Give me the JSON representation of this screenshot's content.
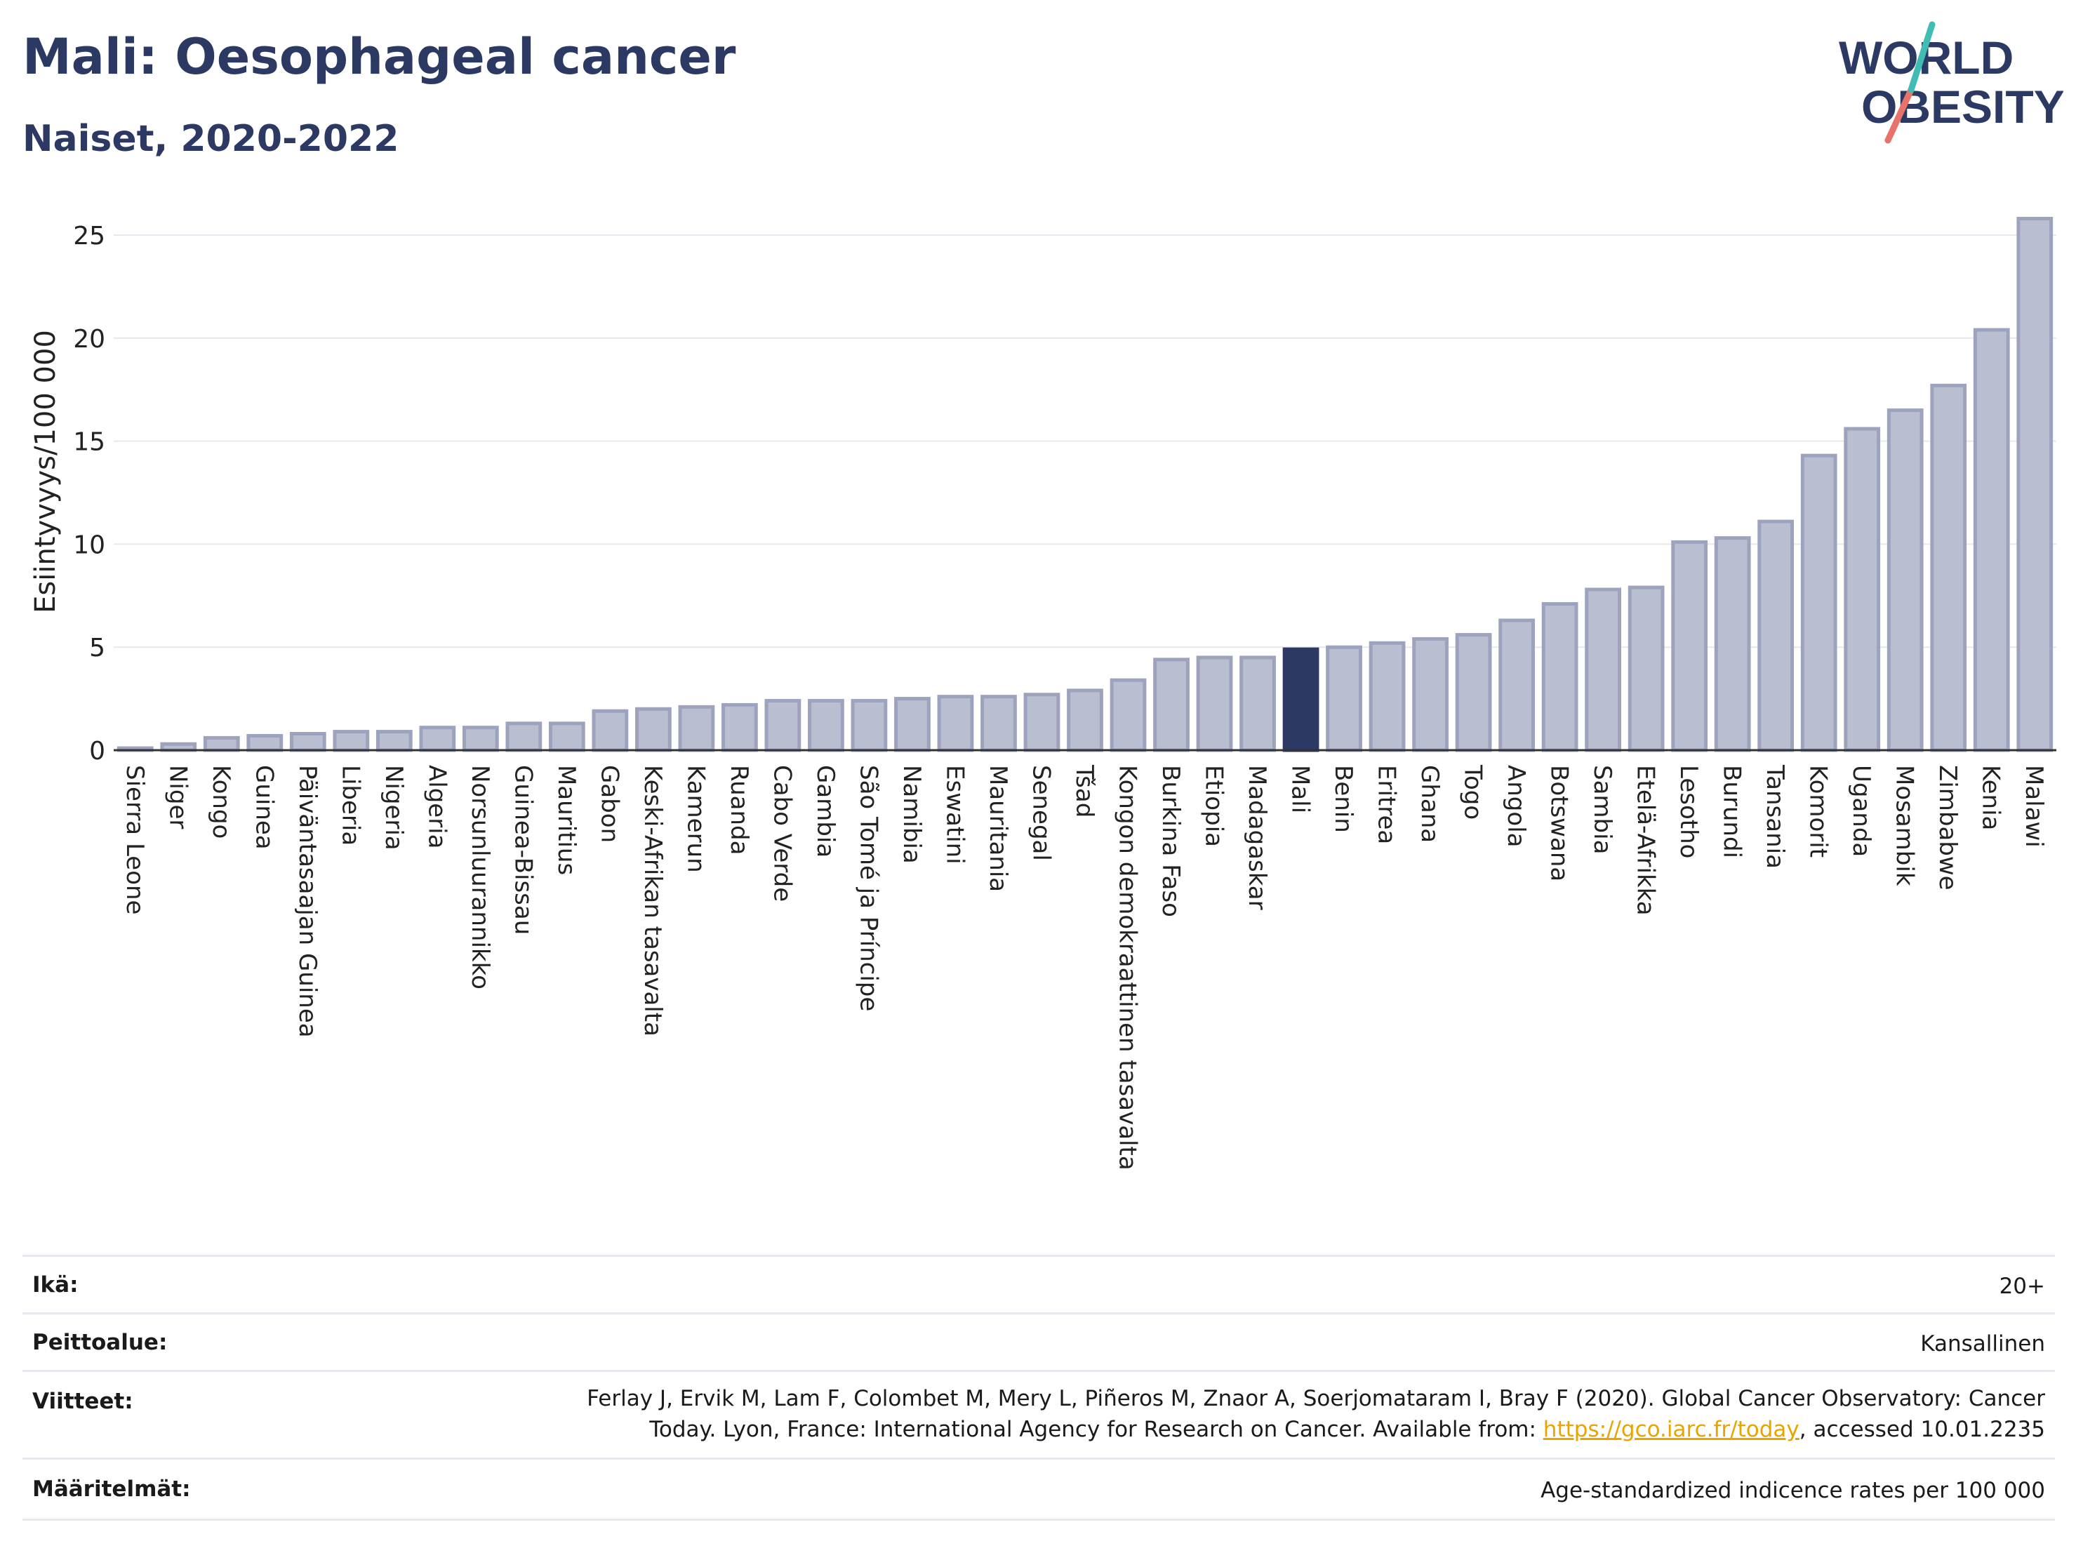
{
  "title": "Mali: Oesophageal cancer",
  "subtitle": "Naiset, 2020-2022",
  "logo": {
    "line1": "WORLD",
    "line2": "OBESITY"
  },
  "colors": {
    "title": "#2c3a63",
    "bar": "#b9bed0",
    "bar_stroke": "#9da3bd",
    "highlight": "#2c3a63",
    "grid": "#e6e8ef",
    "link": "#e8a400"
  },
  "chart_data": {
    "type": "bar",
    "ylabel": "Esiintyvyys/100 000",
    "ylim": [
      0,
      26.5
    ],
    "yticks": [
      0,
      5,
      10,
      15,
      20,
      25
    ],
    "highlight": "Mali",
    "categories": [
      "Sierra Leone",
      "Niger",
      "Kongo",
      "Guinea",
      "Päiväntasaajan Guinea",
      "Liberia",
      "Nigeria",
      "Algeria",
      "Norsunluurannikko",
      "Guinea-Bissau",
      "Mauritius",
      "Gabon",
      "Keski-Afrikan tasavalta",
      "Kamerun",
      "Ruanda",
      "Cabo Verde",
      "Gambia",
      "São Tomé ja Príncipe",
      "Namibia",
      "Eswatini",
      "Mauritania",
      "Senegal",
      "Tšad",
      "Kongon demokraattinen tasavalta",
      "Burkina Faso",
      "Etiopia",
      "Madagaskar",
      "Mali",
      "Benin",
      "Eritrea",
      "Ghana",
      "Togo",
      "Angola",
      "Botswana",
      "Sambia",
      "Etelä-Afrikka",
      "Lesotho",
      "Burundi",
      "Tansania",
      "Komorit",
      "Uganda",
      "Mosambik",
      "Zimbabwe",
      "Kenia",
      "Malawi"
    ],
    "values": [
      0.1,
      0.3,
      0.6,
      0.7,
      0.8,
      0.9,
      0.9,
      1.1,
      1.1,
      1.3,
      1.3,
      1.9,
      2.0,
      2.1,
      2.2,
      2.4,
      2.4,
      2.4,
      2.5,
      2.6,
      2.6,
      2.7,
      2.9,
      3.4,
      4.4,
      4.5,
      4.5,
      4.9,
      5.0,
      5.2,
      5.4,
      5.6,
      6.3,
      7.1,
      7.8,
      7.9,
      10.1,
      10.3,
      11.1,
      14.3,
      15.6,
      16.5,
      17.7,
      20.4,
      25.8
    ]
  },
  "meta": [
    {
      "label": "Ikä:",
      "value": "20+"
    },
    {
      "label": "Peittoalue:",
      "value": "Kansallinen"
    },
    {
      "label": "Viitteet:",
      "value_line1": "Ferlay J, Ervik M, Lam F, Colombet M, Mery L, Piñeros M, Znaor A, Soerjomataram I, Bray F (2020). Global Cancer Observatory: Cancer",
      "value_line2_pre": "Today. Lyon, France: International Agency for Research on Cancer. Available from: ",
      "value_link": "https://gco.iarc.fr/today",
      "value_line2_post": ", accessed 10.01.2235"
    },
    {
      "label": "Määritelmät:",
      "value": "Age-standardized indicence rates per 100 000"
    }
  ]
}
